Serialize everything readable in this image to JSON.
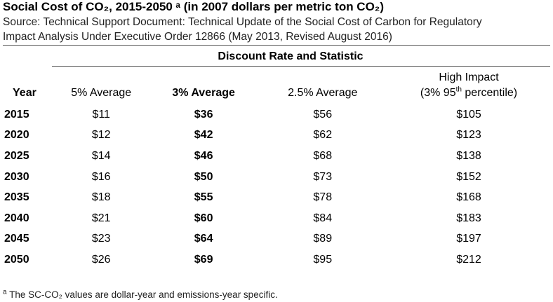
{
  "title": "Social Cost of CO₂, 2015-2050 ᵃ (in 2007 dollars per metric ton CO₂)",
  "source_line1": "Source: Technical Support Document: Technical Update of the Social Cost of Carbon for Regulatory",
  "source_line2": "Impact Analysis Under Executive Order 12866 (May 2013, Revised August 2016)",
  "group_header": "Discount Rate and Statistic",
  "columns": {
    "year": "Year",
    "avg5": "5% Average",
    "avg3": "3% Average",
    "avg25": "2.5% Average",
    "high_line1": "High Impact",
    "high_line2_pre": "(3% 95",
    "high_line2_sup": "th",
    "high_line2_post": " percentile)"
  },
  "rows": [
    {
      "year": "2015",
      "avg5": "$11",
      "avg3": "$36",
      "avg25": "$56",
      "high": "$105"
    },
    {
      "year": "2020",
      "avg5": "$12",
      "avg3": "$42",
      "avg25": "$62",
      "high": "$123"
    },
    {
      "year": "2025",
      "avg5": "$14",
      "avg3": "$46",
      "avg25": "$68",
      "high": "$138"
    },
    {
      "year": "2030",
      "avg5": "$16",
      "avg3": "$50",
      "avg25": "$73",
      "high": "$152"
    },
    {
      "year": "2035",
      "avg5": "$18",
      "avg3": "$55",
      "avg25": "$78",
      "high": "$168"
    },
    {
      "year": "2040",
      "avg5": "$21",
      "avg3": "$60",
      "avg25": "$84",
      "high": "$183"
    },
    {
      "year": "2045",
      "avg5": "$23",
      "avg3": "$64",
      "avg25": "$89",
      "high": "$197"
    },
    {
      "year": "2050",
      "avg5": "$26",
      "avg3": "$69",
      "avg25": "$95",
      "high": "$212"
    }
  ],
  "footnote": {
    "marker": "a",
    "text": " The SC-CO₂ values are dollar-year and emissions-year specific."
  }
}
